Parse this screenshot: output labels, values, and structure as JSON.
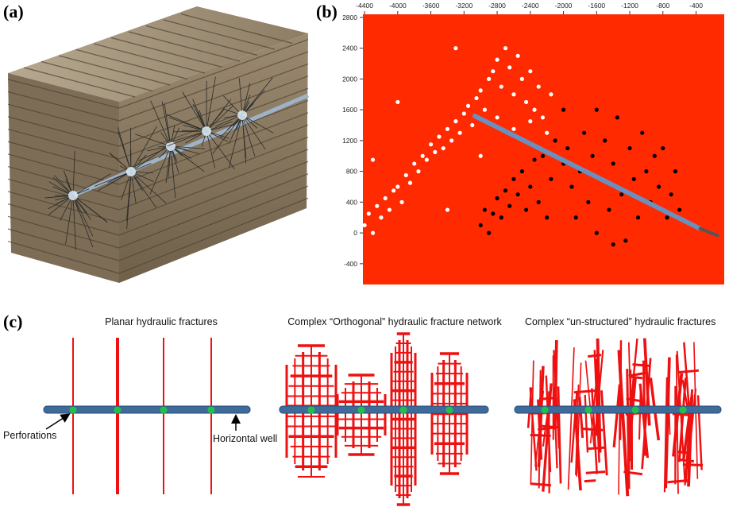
{
  "panel_labels": [
    "(a)",
    "(b)",
    "(c)"
  ],
  "chart_data": {
    "type": "scatter",
    "xlim": [
      -4420,
      -60
    ],
    "ylim": [
      -670,
      2840
    ],
    "xticks": [
      -4400,
      -4000,
      -3600,
      -3200,
      -2800,
      -2400,
      -2000,
      -1600,
      -1200,
      -800,
      -400
    ],
    "yticks": [
      2800,
      2400,
      2000,
      1600,
      1200,
      800,
      400,
      0,
      -400
    ],
    "background": "#ff2a00",
    "series": [
      {
        "color": "#ffffff",
        "x": [
          -4400,
          -4350,
          -4300,
          -4250,
          -4200,
          -4150,
          -4100,
          -4050,
          -4000,
          -3950,
          -3900,
          -3850,
          -3800,
          -3750,
          -3700,
          -3650,
          -3600,
          -3550,
          -3500,
          -3450,
          -3400,
          -3350,
          -3300,
          -3250,
          -3200,
          -3150,
          -3100,
          -3050,
          -3000,
          -2950,
          -2900,
          -2850,
          -2800,
          -2750,
          -2700,
          -2650,
          -2600,
          -2550,
          -2500,
          -2450,
          -2400,
          -2350,
          -2300,
          -2250,
          -2200,
          -2400,
          -2600,
          -2800,
          -3300,
          -4000,
          -3400,
          -4300,
          -3000,
          -2150
        ],
        "values": [
          100,
          250,
          0,
          350,
          200,
          450,
          300,
          550,
          600,
          400,
          750,
          650,
          900,
          800,
          1000,
          950,
          1150,
          1050,
          1250,
          1100,
          1350,
          1200,
          1450,
          1300,
          1550,
          1650,
          1400,
          1750,
          1850,
          1600,
          2000,
          2100,
          2250,
          1900,
          2400,
          2150,
          1800,
          2300,
          2000,
          1700,
          2100,
          1600,
          1900,
          1500,
          1300,
          1450,
          1350,
          1500,
          2400,
          1700,
          300,
          950,
          1000,
          1800
        ]
      },
      {
        "color": "#000000",
        "x": [
          -3000,
          -2950,
          -2900,
          -2850,
          -2800,
          -2750,
          -2700,
          -2650,
          -2600,
          -2550,
          -2500,
          -2450,
          -2400,
          -2350,
          -2300,
          -2250,
          -2200,
          -2150,
          -2100,
          -2000,
          -1950,
          -1900,
          -1850,
          -1800,
          -1750,
          -1700,
          -1650,
          -1600,
          -1550,
          -1500,
          -1450,
          -1400,
          -1350,
          -1300,
          -1250,
          -1200,
          -1150,
          -1100,
          -1050,
          -1000,
          -950,
          -900,
          -850,
          -800,
          -750,
          -700,
          -650,
          -600,
          -1600,
          -1400,
          -2000
        ],
        "values": [
          100,
          300,
          0,
          250,
          450,
          200,
          550,
          350,
          700,
          500,
          800,
          300,
          600,
          950,
          400,
          1000,
          200,
          700,
          1200,
          900,
          1100,
          600,
          200,
          800,
          1300,
          400,
          1000,
          0,
          700,
          1200,
          300,
          900,
          1500,
          500,
          -100,
          1100,
          700,
          200,
          1300,
          800,
          400,
          1000,
          600,
          1100,
          200,
          500,
          800,
          300,
          1600,
          -150,
          1600
        ]
      }
    ]
  },
  "panel_c": {
    "titles": [
      "Planar hydraulic fractures",
      "Complex “Orthogonal” hydraulic fracture network",
      "Complex “un-structured” hydraulic fractures"
    ],
    "perforations": "Perforations",
    "horizontal_well": "Horizontal well"
  }
}
